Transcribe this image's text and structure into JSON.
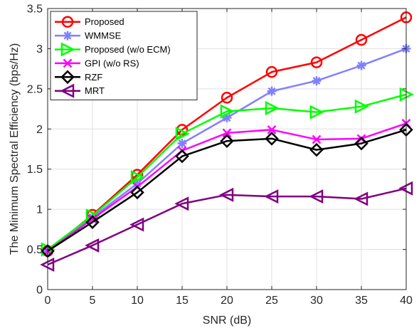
{
  "chart_data": {
    "type": "line",
    "title": "",
    "xlabel": "SNR (dB)",
    "ylabel": "The Minimum Spectral Efficiency (bps/Hz)",
    "x": [
      0,
      5,
      10,
      15,
      20,
      25,
      30,
      35,
      40
    ],
    "xlim": [
      0,
      40
    ],
    "ylim": [
      0,
      3.5
    ],
    "xticks": [
      "0",
      "5",
      "10",
      "15",
      "20",
      "25",
      "30",
      "35",
      "40"
    ],
    "yticks": [
      "0",
      "0.5",
      "1",
      "1.5",
      "2",
      "2.5",
      "3",
      "3.5"
    ],
    "grid": true,
    "legend_position": "top-left",
    "series": [
      {
        "name": "Proposed",
        "color": "#ff0000",
        "marker": "circle",
        "values": [
          0.48,
          0.93,
          1.43,
          1.99,
          2.39,
          2.71,
          2.83,
          3.11,
          3.39
        ]
      },
      {
        "name": "WMMSE",
        "color": "#8080ff",
        "marker": "asterisk",
        "values": [
          0.48,
          0.9,
          1.32,
          1.82,
          2.14,
          2.47,
          2.6,
          2.79,
          3.0
        ]
      },
      {
        "name": "Proposed (w/o ECM)",
        "color": "#00ff00",
        "marker": "triangle-right",
        "values": [
          0.5,
          0.92,
          1.4,
          1.94,
          2.22,
          2.26,
          2.21,
          2.28,
          2.43
        ]
      },
      {
        "name": "GPI (w/o RS)",
        "color": "#ff00ff",
        "marker": "x",
        "values": [
          0.48,
          0.88,
          1.28,
          1.73,
          1.95,
          1.99,
          1.87,
          1.88,
          2.07
        ]
      },
      {
        "name": "RZF",
        "color": "#000000",
        "marker": "diamond",
        "values": [
          0.48,
          0.84,
          1.21,
          1.66,
          1.85,
          1.88,
          1.74,
          1.82,
          1.99
        ]
      },
      {
        "name": "MRT",
        "color": "#800080",
        "marker": "triangle-left",
        "values": [
          0.31,
          0.55,
          0.81,
          1.07,
          1.18,
          1.16,
          1.16,
          1.13,
          1.26
        ]
      }
    ]
  }
}
